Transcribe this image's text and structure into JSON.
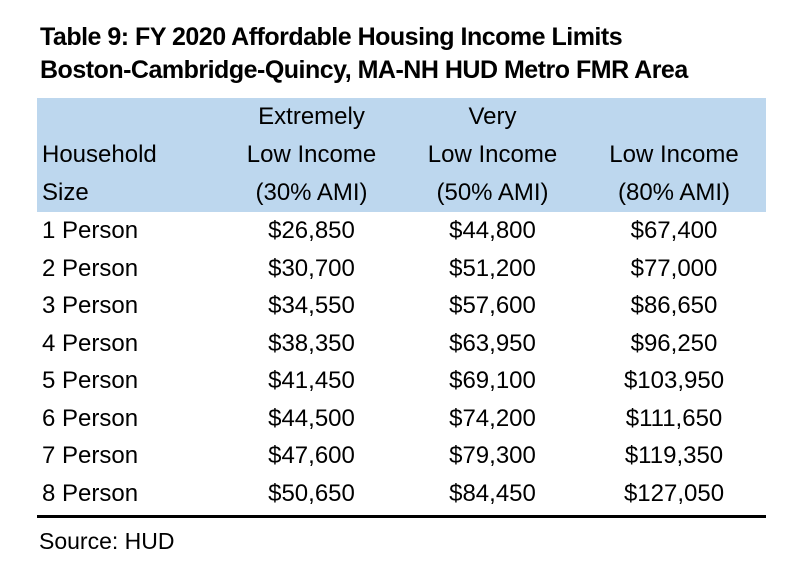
{
  "title": {
    "line1": "Table 9: FY 2020 Affordable Housing Income Limits",
    "line2": "Boston-Cambridge-Quincy, MA-NH HUD Metro FMR Area"
  },
  "table": {
    "header": {
      "col1": {
        "line1": "",
        "line2": "Household",
        "line3": "Size"
      },
      "col2": {
        "line1": "Extremely",
        "line2": "Low Income",
        "line3": "(30% AMI)"
      },
      "col3": {
        "line1": "Very",
        "line2": "Low Income",
        "line3": "(50% AMI)"
      },
      "col4": {
        "line1": "",
        "line2": "Low Income",
        "line3": "(80% AMI)"
      }
    },
    "rows": [
      {
        "size": "1 Person",
        "extremely_low": "$26,850",
        "very_low": "$44,800",
        "low": "$67,400"
      },
      {
        "size": "2 Person",
        "extremely_low": "$30,700",
        "very_low": "$51,200",
        "low": "$77,000"
      },
      {
        "size": "3 Person",
        "extremely_low": "$34,550",
        "very_low": "$57,600",
        "low": "$86,650"
      },
      {
        "size": "4 Person",
        "extremely_low": "$38,350",
        "very_low": "$63,950",
        "low": "$96,250"
      },
      {
        "size": "5 Person",
        "extremely_low": "$41,450",
        "very_low": "$69,100",
        "low": "$103,950"
      },
      {
        "size": "6 Person",
        "extremely_low": "$44,500",
        "very_low": "$74,200",
        "low": "$111,650"
      },
      {
        "size": "7 Person",
        "extremely_low": "$47,600",
        "very_low": "$79,300",
        "low": "$119,350"
      },
      {
        "size": "8 Person",
        "extremely_low": "$50,650",
        "very_low": "$84,450",
        "low": "$127,050"
      }
    ]
  },
  "source": "Source: HUD",
  "colors": {
    "header_bg": "#BDD7EE",
    "text": "#000000",
    "rule": "#000000"
  }
}
